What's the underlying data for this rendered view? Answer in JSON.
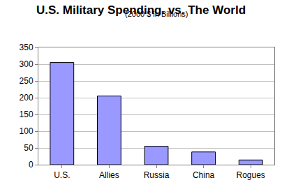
{
  "chart_data": {
    "type": "bar",
    "title": "U.S. Military Spending. vs. The World",
    "subtitle": "(2000 $ in Billions)",
    "categories": [
      "U.S.",
      "Allies",
      "Russia",
      "China",
      "Rogues"
    ],
    "values": [
      305,
      205,
      55,
      38,
      14
    ],
    "color": "#9999ff",
    "ylim": [
      0,
      350
    ],
    "yticks": [
      0,
      50,
      100,
      150,
      200,
      250,
      300,
      350
    ],
    "grid": true
  }
}
